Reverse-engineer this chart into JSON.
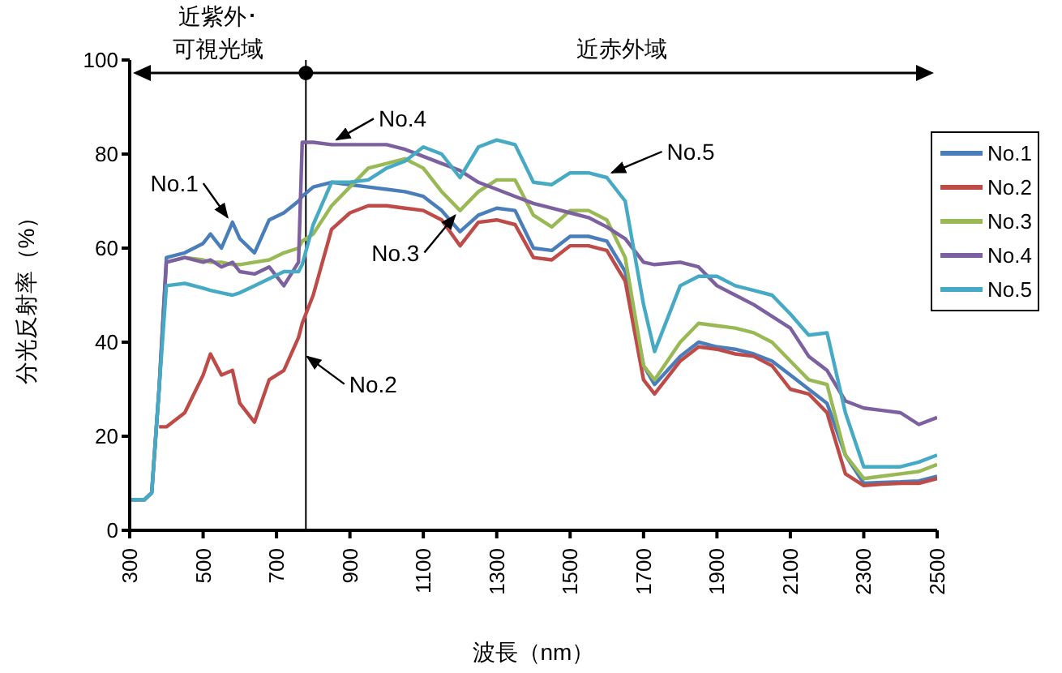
{
  "chart_data": {
    "type": "line",
    "xlabel": "波長（nm）",
    "ylabel": "分光反射率（%）",
    "x": [
      300,
      340,
      360,
      380,
      400,
      450,
      500,
      520,
      550,
      580,
      600,
      640,
      680,
      720,
      760,
      770,
      800,
      850,
      900,
      950,
      1000,
      1050,
      1100,
      1150,
      1200,
      1250,
      1300,
      1350,
      1400,
      1450,
      1500,
      1550,
      1600,
      1650,
      1700,
      1730,
      1800,
      1850,
      1900,
      1950,
      2000,
      2050,
      2100,
      2150,
      2200,
      2250,
      2300,
      2350,
      2400,
      2450,
      2500
    ],
    "series": [
      {
        "name": "No.1",
        "color": "#4a7ebb",
        "values": [
          6.5,
          6.5,
          8,
          30,
          58,
          59,
          61,
          63,
          60,
          65.5,
          62,
          59,
          66,
          67.5,
          70,
          71,
          73,
          74,
          73.5,
          73,
          72.5,
          72,
          71,
          68,
          63.5,
          67,
          68.5,
          68,
          60,
          59.5,
          62.5,
          62.5,
          61.5,
          55,
          35,
          31,
          37,
          40,
          39,
          38.5,
          37.5,
          36,
          33,
          30,
          27,
          16,
          10,
          10.2,
          10.3,
          10.5,
          11.5
        ]
      },
      {
        "name": "No.2",
        "color": "#be4b48",
        "values": [
          null,
          null,
          null,
          22,
          22,
          25,
          33,
          37.5,
          33,
          34,
          27,
          23,
          32,
          34,
          41,
          44,
          50,
          64,
          67.5,
          69,
          69,
          68.5,
          68,
          66,
          60.5,
          65.5,
          66,
          65,
          58,
          57.5,
          60.5,
          60.5,
          59.5,
          53,
          32,
          29,
          36,
          39,
          38.5,
          37.5,
          37,
          35,
          30,
          29,
          25,
          12,
          9.5,
          9.8,
          10,
          10,
          11
        ]
      },
      {
        "name": "No.3",
        "color": "#98b954",
        "values": [
          null,
          null,
          null,
          null,
          57,
          58,
          57.5,
          57,
          57,
          56.5,
          56.5,
          57,
          57.5,
          59,
          60,
          61.5,
          63,
          69,
          73,
          77,
          78,
          79,
          77,
          72,
          68,
          72,
          74.5,
          74.5,
          67,
          64.5,
          68,
          68,
          66,
          58,
          35,
          32,
          40,
          44,
          43.5,
          43,
          42,
          40,
          36,
          32,
          31,
          16,
          11,
          11.5,
          12,
          12.5,
          14
        ]
      },
      {
        "name": "No.4",
        "color": "#7d60a0",
        "values": [
          6.5,
          6.5,
          8,
          30,
          57,
          58,
          57,
          57.5,
          56,
          57,
          55,
          54.5,
          56,
          52,
          57,
          82.5,
          82.5,
          82,
          82,
          82,
          82,
          81,
          79.5,
          78,
          76.5,
          74,
          72.5,
          71,
          69.5,
          68.5,
          67.5,
          66.5,
          64.5,
          62,
          57,
          56.5,
          57,
          56,
          52,
          50,
          48,
          45.5,
          43,
          37,
          34,
          27.5,
          26,
          25.5,
          25,
          22.5,
          24
        ]
      },
      {
        "name": "No.5",
        "color": "#46aac5",
        "values": [
          6.5,
          6.5,
          8,
          30,
          52,
          52.5,
          51.5,
          51,
          50.5,
          50,
          50.5,
          52,
          53.5,
          55,
          55,
          56.5,
          65,
          74,
          74,
          74.5,
          77,
          78.5,
          81.5,
          80,
          75,
          81.5,
          83,
          82,
          74,
          73.5,
          76,
          76,
          75,
          70,
          48,
          38,
          52,
          54,
          54,
          52,
          51,
          50,
          46,
          41.5,
          42,
          25,
          13.5,
          13.5,
          13.5,
          14.5,
          16
        ]
      }
    ],
    "xlim": [
      300,
      2500
    ],
    "xticks": [
      300,
      500,
      700,
      900,
      1100,
      1300,
      1500,
      1700,
      1900,
      2100,
      2300,
      2500
    ],
    "ylim": [
      0,
      100
    ],
    "yticks": [
      0,
      20,
      40,
      60,
      80,
      100
    ],
    "grid": false,
    "legend": "right",
    "marker": "none",
    "line_style": "solid",
    "ref_lines": [
      {
        "axis": "x",
        "value": 780,
        "color": "#000000"
      }
    ],
    "annotations": [
      "近紫外･可視光域",
      "近赤外域",
      {
        "text": "No.1",
        "x": 580,
        "y": 65.5
      },
      {
        "text": "No.2",
        "x": 770,
        "y": 38
      },
      {
        "text": "No.3",
        "x": 1200,
        "y": 68
      },
      {
        "text": "No.4",
        "x": 850,
        "y": 82
      },
      {
        "text": "No.5",
        "x": 1600,
        "y": 75
      }
    ]
  }
}
